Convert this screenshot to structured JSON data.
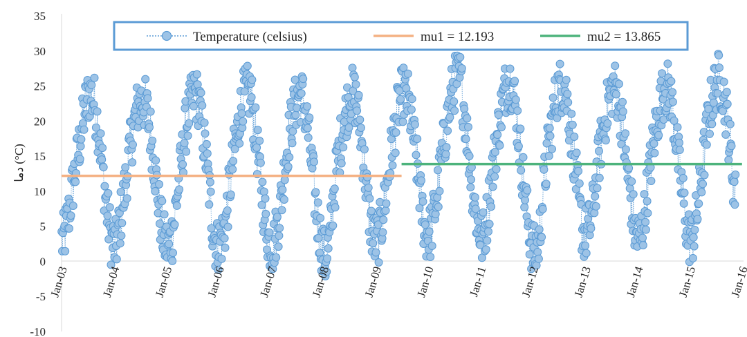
{
  "chart_data": {
    "type": "line",
    "ylabel": "دما (°C)",
    "ylim": [
      -10,
      35
    ],
    "yticks": [
      -10,
      -5,
      0,
      5,
      10,
      15,
      20,
      25,
      30,
      35
    ],
    "xlim": [
      "2003-01-01",
      "2016-01-01"
    ],
    "xticks": [
      "Jan-03",
      "Jan-04",
      "Jan-05",
      "Jan-06",
      "Jan-07",
      "Jan-08",
      "Jan-09",
      "Jan-10",
      "Jan-11",
      "Jan-12",
      "Jan-13",
      "Jan-14",
      "Jan-15",
      "Jan-16"
    ],
    "grid": false,
    "legend_position": "top",
    "series": [
      {
        "name": "Temperature (celsius)",
        "style": "dotted line with circle markers",
        "color": "#5b9bd5",
        "marker_fill": "#9dc3e6",
        "seasonal_monthly": [
          {
            "year": 2003,
            "values": [
              3,
              6,
              10,
              14,
              18,
              22,
              24,
              23,
              19,
              13,
              7,
              3
            ]
          },
          {
            "year": 2004,
            "values": [
              2,
              6,
              10,
              15,
              19,
              22,
              23,
              22,
              18,
              13,
              7,
              3
            ]
          },
          {
            "year": 2005,
            "values": [
              2,
              4,
              9,
              14,
              19,
              22,
              24,
              23,
              18,
              13,
              6,
              2
            ]
          },
          {
            "year": 2006,
            "values": [
              3,
              5,
              10,
              15,
              19,
              23,
              24,
              24,
              18,
              13,
              7,
              3
            ]
          },
          {
            "year": 2007,
            "values": [
              2,
              5,
              9,
              15,
              19,
              22,
              24,
              23,
              19,
              13,
              7,
              3
            ]
          },
          {
            "year": 2008,
            "values": [
              0,
              3,
              10,
              15,
              19,
              22,
              24,
              23,
              19,
              13,
              7,
              3
            ]
          },
          {
            "year": 2009,
            "values": [
              3,
              6,
              10,
              15,
              19,
              23,
              24,
              23,
              19,
              14,
              8,
              4
            ]
          },
          {
            "year": 2010,
            "values": [
              4,
              7,
              11,
              16,
              20,
              24,
              26,
              26,
              21,
              15,
              9,
              5
            ]
          },
          {
            "year": 2011,
            "values": [
              3,
              6,
              11,
              16,
              20,
              24,
              26,
              25,
              20,
              14,
              8,
              3
            ]
          },
          {
            "year": 2012,
            "values": [
              1,
              3,
              10,
              16,
              20,
              24,
              25,
              25,
              20,
              15,
              9,
              4
            ]
          },
          {
            "year": 2013,
            "values": [
              4,
              6,
              11,
              16,
              20,
              23,
              25,
              24,
              20,
              14,
              9,
              4
            ]
          },
          {
            "year": 2014,
            "values": [
              3,
              6,
              11,
              16,
              20,
              23,
              25,
              24,
              20,
              14,
              9,
              4
            ]
          },
          {
            "year": 2015,
            "values": [
              3,
              6,
              11,
              16,
              21,
              24,
              26,
              25,
              21,
              15,
              9,
              4
            ]
          }
        ],
        "end_date": "2015-11-15"
      },
      {
        "name": "mu1 = 12.193",
        "color": "#f4b183",
        "value": 12.193,
        "x_range": [
          "2003-01-01",
          "2009-06-30"
        ]
      },
      {
        "name": "mu2 = 13.865",
        "color": "#4db37c",
        "value": 13.865,
        "x_range": [
          "2009-06-30",
          "2015-12-31"
        ]
      }
    ]
  }
}
